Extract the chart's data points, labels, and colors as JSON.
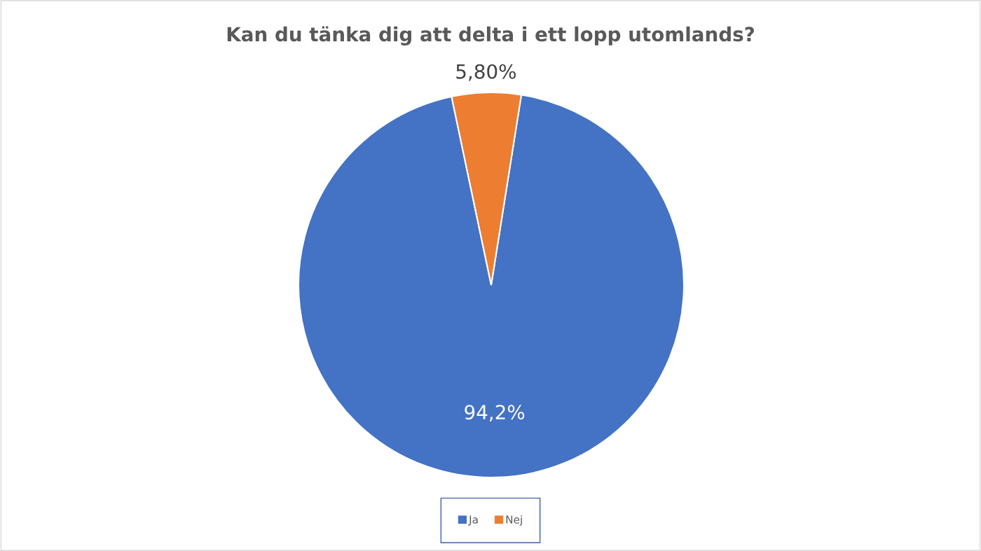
{
  "chart_data": {
    "type": "pie",
    "title": "Kan du tänka dig att delta i ett lopp utomlands?",
    "categories": [
      "Ja",
      "Nej"
    ],
    "values": [
      94.2,
      5.8
    ],
    "colors": [
      "#4472c4",
      "#ed7d31"
    ],
    "value_labels": [
      "94,2%",
      "5,80%"
    ],
    "legend": "bottom"
  }
}
